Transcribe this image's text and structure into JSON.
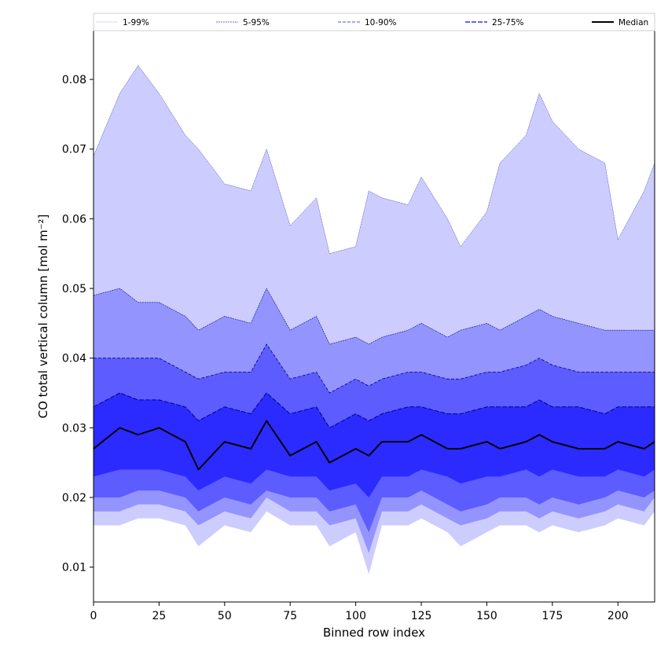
{
  "chart_data": {
    "type": "area",
    "xlabel": "Binned row index",
    "ylabel": "CO total vertical column [mol m⁻²]",
    "xlim": [
      0,
      214
    ],
    "ylim": [
      0.005,
      0.087
    ],
    "x_ticks": [
      0,
      25,
      50,
      75,
      100,
      125,
      150,
      175,
      200
    ],
    "y_ticks": [
      0.01,
      0.02,
      0.03,
      0.04,
      0.05,
      0.06,
      0.07,
      0.08
    ],
    "y_tick_labels": [
      "0.01",
      "0.02",
      "0.03",
      "0.04",
      "0.05",
      "0.06",
      "0.07",
      "0.08"
    ],
    "legend_position": "top",
    "legend": [
      "1-99%",
      "5-95%",
      "10-90%",
      "25-75%",
      "Median"
    ],
    "colors": {
      "band_1_99": "#ccccff",
      "band_5_95": "#9494ff",
      "band_10_90": "#5c5cff",
      "band_25_75": "#2b2bff",
      "edge_line": "#00008b",
      "median": "#000000"
    },
    "x": [
      0,
      10,
      17,
      25,
      35,
      40,
      50,
      60,
      66,
      75,
      85,
      90,
      100,
      105,
      110,
      120,
      125,
      135,
      140,
      150,
      155,
      165,
      170,
      175,
      185,
      195,
      200,
      210,
      214
    ],
    "series": [
      {
        "name": "1-99%",
        "lower": [
          0.016,
          0.016,
          0.017,
          0.017,
          0.016,
          0.013,
          0.016,
          0.015,
          0.018,
          0.016,
          0.016,
          0.013,
          0.015,
          0.009,
          0.016,
          0.016,
          0.017,
          0.015,
          0.013,
          0.015,
          0.016,
          0.016,
          0.015,
          0.016,
          0.015,
          0.016,
          0.017,
          0.016,
          0.018
        ],
        "upper": [
          0.069,
          0.078,
          0.082,
          0.078,
          0.072,
          0.07,
          0.065,
          0.064,
          0.07,
          0.059,
          0.063,
          0.055,
          0.056,
          0.064,
          0.063,
          0.062,
          0.066,
          0.06,
          0.056,
          0.061,
          0.068,
          0.072,
          0.078,
          0.074,
          0.07,
          0.068,
          0.057,
          0.064,
          0.068
        ]
      },
      {
        "name": "5-95%",
        "lower": [
          0.018,
          0.018,
          0.019,
          0.019,
          0.018,
          0.016,
          0.018,
          0.017,
          0.02,
          0.018,
          0.018,
          0.016,
          0.017,
          0.012,
          0.018,
          0.018,
          0.019,
          0.017,
          0.016,
          0.017,
          0.018,
          0.018,
          0.017,
          0.018,
          0.017,
          0.018,
          0.019,
          0.018,
          0.02
        ],
        "upper": [
          0.049,
          0.05,
          0.048,
          0.048,
          0.046,
          0.044,
          0.046,
          0.045,
          0.05,
          0.044,
          0.046,
          0.042,
          0.043,
          0.042,
          0.043,
          0.044,
          0.045,
          0.043,
          0.044,
          0.045,
          0.044,
          0.046,
          0.047,
          0.046,
          0.045,
          0.044,
          0.044,
          0.044,
          0.044
        ]
      },
      {
        "name": "10-90%",
        "lower": [
          0.02,
          0.02,
          0.021,
          0.021,
          0.02,
          0.018,
          0.02,
          0.019,
          0.021,
          0.02,
          0.02,
          0.018,
          0.019,
          0.015,
          0.02,
          0.02,
          0.021,
          0.019,
          0.018,
          0.019,
          0.02,
          0.02,
          0.019,
          0.02,
          0.019,
          0.02,
          0.021,
          0.02,
          0.021
        ],
        "upper": [
          0.04,
          0.04,
          0.04,
          0.04,
          0.038,
          0.037,
          0.038,
          0.038,
          0.042,
          0.037,
          0.038,
          0.035,
          0.037,
          0.036,
          0.037,
          0.038,
          0.038,
          0.037,
          0.037,
          0.038,
          0.038,
          0.039,
          0.04,
          0.039,
          0.038,
          0.038,
          0.038,
          0.038,
          0.038
        ]
      },
      {
        "name": "25-75%",
        "lower": [
          0.023,
          0.024,
          0.024,
          0.024,
          0.023,
          0.021,
          0.023,
          0.022,
          0.024,
          0.023,
          0.023,
          0.021,
          0.022,
          0.02,
          0.023,
          0.023,
          0.024,
          0.023,
          0.022,
          0.023,
          0.023,
          0.024,
          0.023,
          0.024,
          0.023,
          0.023,
          0.024,
          0.023,
          0.024
        ],
        "upper": [
          0.033,
          0.035,
          0.034,
          0.034,
          0.033,
          0.031,
          0.033,
          0.032,
          0.035,
          0.032,
          0.033,
          0.03,
          0.032,
          0.031,
          0.032,
          0.033,
          0.033,
          0.032,
          0.032,
          0.033,
          0.033,
          0.033,
          0.034,
          0.033,
          0.033,
          0.032,
          0.033,
          0.033,
          0.033
        ]
      },
      {
        "name": "Median",
        "values": [
          0.027,
          0.03,
          0.029,
          0.03,
          0.028,
          0.024,
          0.028,
          0.027,
          0.031,
          0.026,
          0.028,
          0.025,
          0.027,
          0.026,
          0.028,
          0.028,
          0.029,
          0.027,
          0.027,
          0.028,
          0.027,
          0.028,
          0.029,
          0.028,
          0.027,
          0.027,
          0.028,
          0.027,
          0.028
        ]
      }
    ]
  }
}
